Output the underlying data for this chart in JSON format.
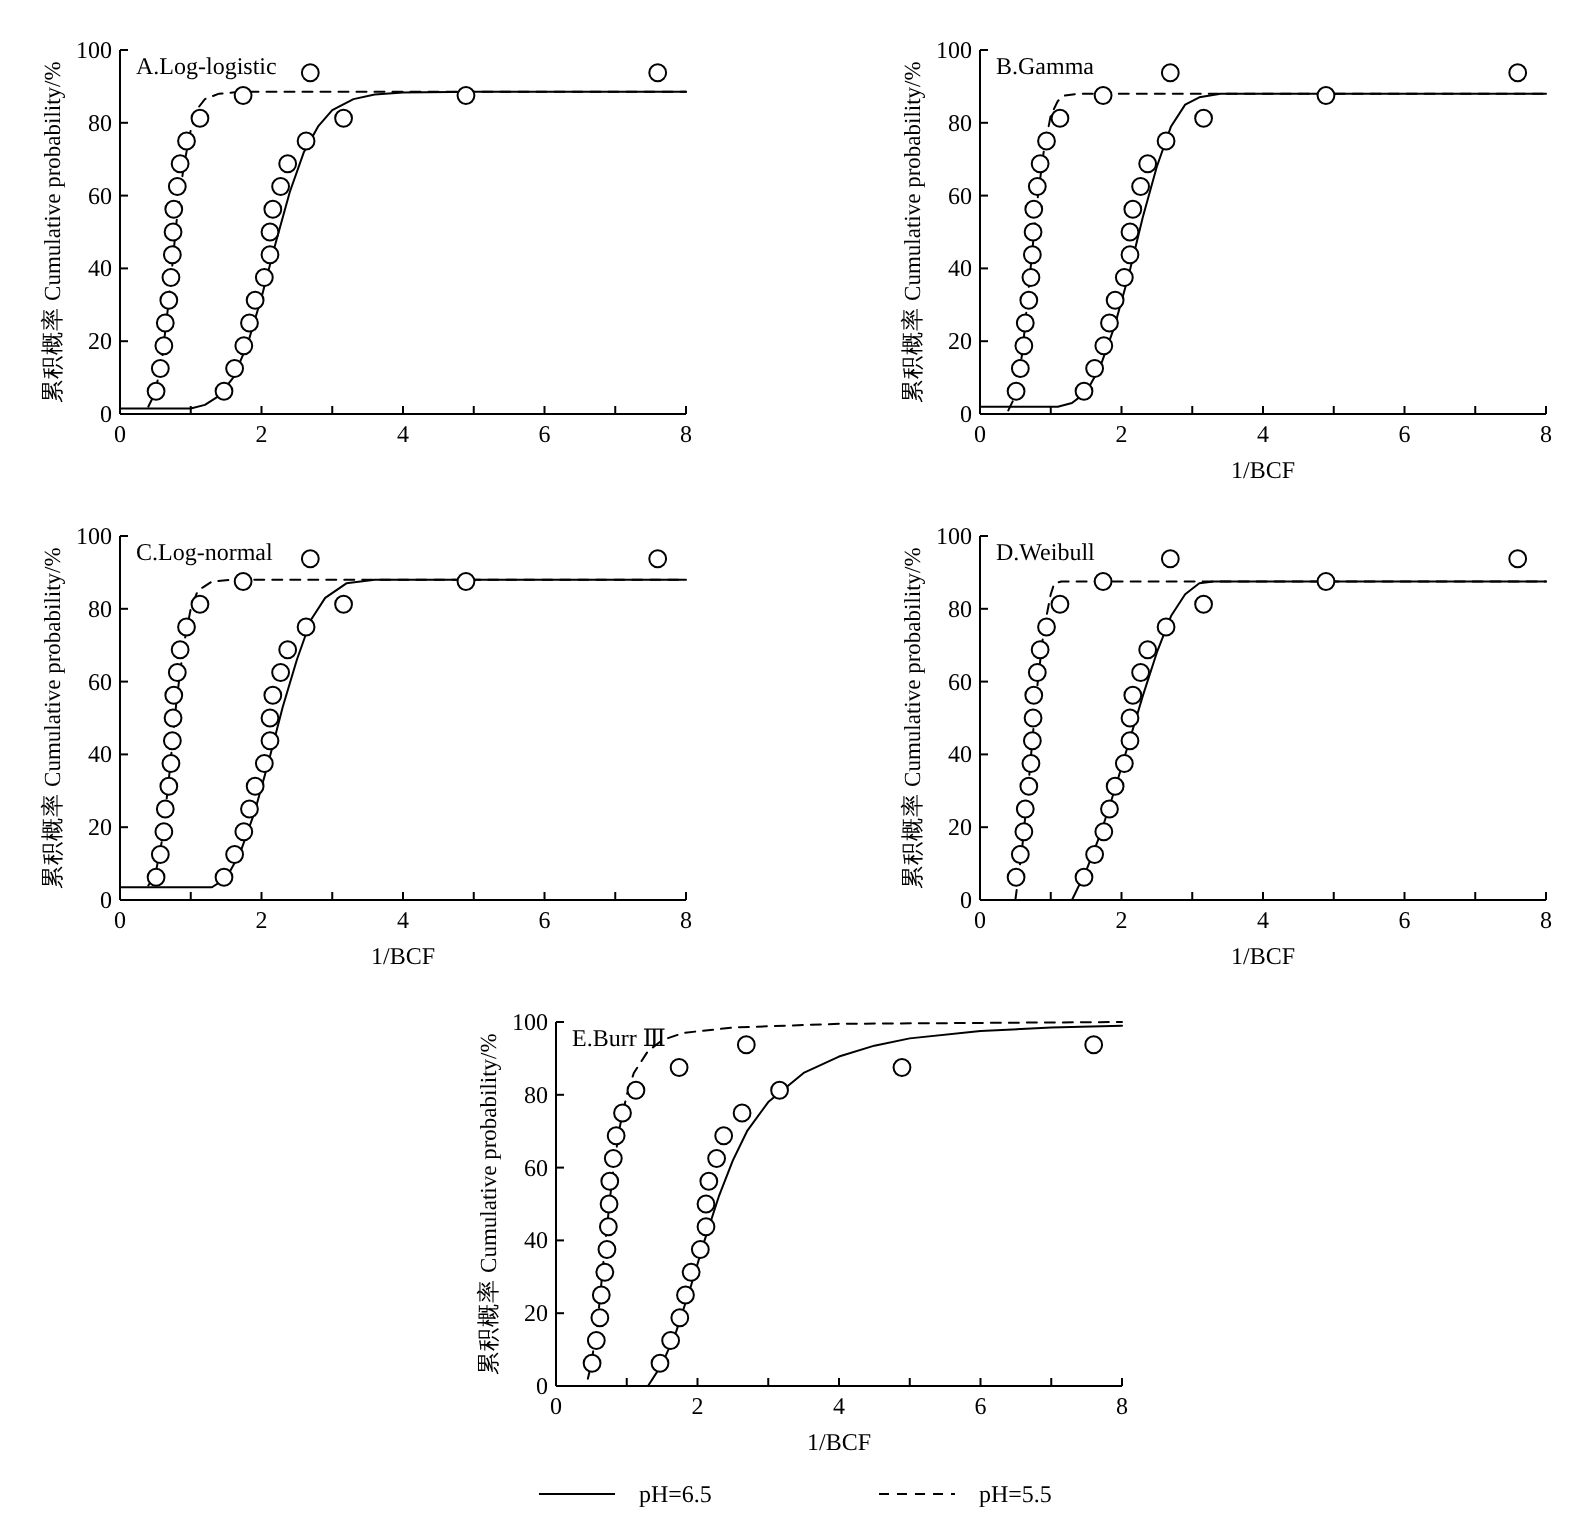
{
  "chart_data": [
    {
      "type": "line",
      "title": "A.Log-logistic",
      "ylabel": "累积概率 Cumulative probability/%",
      "xlim": [
        0,
        8
      ],
      "ylim": [
        0,
        100
      ],
      "xticks": [
        0,
        {
          "value": 1,
          "label": null
        },
        2,
        {
          "value": 3,
          "label": null
        },
        4,
        {
          "value": 5,
          "label": null
        },
        6,
        {
          "value": 7,
          "label": null
        },
        8
      ],
      "yticks": [
        0,
        20,
        40,
        60,
        80,
        100
      ],
      "legend": false,
      "series": [
        {
          "type": "line",
          "color": "#000000",
          "line_style": "solid",
          "marker": "none",
          "x": [
            0,
            1,
            1.2,
            1.4,
            1.6,
            1.8,
            2,
            2.2,
            2.4,
            2.6,
            2.8,
            3,
            3.3,
            3.6,
            4,
            5,
            8
          ],
          "values": [
            1.5,
            1.5,
            2.5,
            5,
            10,
            19,
            32,
            47,
            61,
            72,
            79,
            83.5,
            86.5,
            87.8,
            88.3,
            88.5,
            88.5
          ]
        },
        {
          "type": "line",
          "color": "#000000",
          "line_style": "dashed",
          "marker": "none",
          "x": [
            0.4,
            0.5,
            0.6,
            0.7,
            0.8,
            0.9,
            1,
            1.1,
            1.2,
            1.4,
            1.7,
            8
          ],
          "values": [
            2,
            6,
            16,
            33,
            53,
            68,
            78,
            84,
            86.5,
            88,
            88.5,
            88.5
          ]
        },
        {
          "type": "scatter",
          "color": "#000000",
          "marker": "circle",
          "x": [
            1.47,
            1.62,
            1.75,
            1.83,
            1.91,
            2.04,
            2.12,
            2.12,
            2.16,
            2.27,
            2.37,
            2.63,
            3.16,
            4.89,
            7.6
          ],
          "values": [
            6.25,
            12.5,
            18.75,
            25,
            31.25,
            37.5,
            43.75,
            50,
            56.25,
            62.5,
            68.75,
            75,
            81.25,
            87.5,
            93.75
          ]
        },
        {
          "type": "scatter",
          "color": "#000000",
          "marker": "circle",
          "x": [
            0.51,
            0.57,
            0.62,
            0.64,
            0.69,
            0.72,
            0.74,
            0.75,
            0.76,
            0.81,
            0.85,
            0.94,
            1.13,
            1.74,
            2.69
          ],
          "values": [
            6.25,
            12.5,
            18.75,
            25,
            31.25,
            37.5,
            43.75,
            50,
            56.25,
            62.5,
            68.75,
            75,
            81.25,
            87.5,
            93.75
          ]
        }
      ]
    },
    {
      "type": "line",
      "title": "B.Gamma",
      "xlabel": "1/BCF",
      "ylabel": "累积概率 Cumulative probability/%",
      "xlim": [
        0,
        8
      ],
      "ylim": [
        0,
        100
      ],
      "xticks": [
        0,
        {
          "value": 1,
          "label": null
        },
        2,
        {
          "value": 3,
          "label": null
        },
        4,
        {
          "value": 5,
          "label": null
        },
        6,
        {
          "value": 7,
          "label": null
        },
        8
      ],
      "yticks": [
        0,
        20,
        40,
        60,
        80,
        100
      ],
      "legend": false,
      "series": [
        {
          "type": "line",
          "color": "#000000",
          "line_style": "solid",
          "marker": "none",
          "x": [
            0,
            1.1,
            1.3,
            1.5,
            1.7,
            1.9,
            2.1,
            2.3,
            2.5,
            2.7,
            2.9,
            3.1,
            3.4,
            4,
            8
          ],
          "values": [
            2,
            2,
            3,
            6,
            13,
            24,
            38,
            54,
            68,
            79,
            85,
            87,
            88,
            88,
            88
          ]
        },
        {
          "type": "line",
          "color": "#000000",
          "line_style": "dashed",
          "marker": "none",
          "x": [
            0.4,
            0.5,
            0.6,
            0.7,
            0.8,
            0.9,
            1,
            1.1,
            1.2,
            1.4,
            8
          ],
          "values": [
            1,
            5,
            17,
            37,
            57,
            72,
            82,
            86,
            87.5,
            88,
            88
          ]
        },
        {
          "type": "scatter",
          "color": "#000000",
          "marker": "circle",
          "x": [
            1.47,
            1.62,
            1.75,
            1.83,
            1.91,
            2.04,
            2.12,
            2.12,
            2.16,
            2.27,
            2.37,
            2.63,
            3.16,
            4.89,
            7.6
          ],
          "values": [
            6.25,
            12.5,
            18.75,
            25,
            31.25,
            37.5,
            43.75,
            50,
            56.25,
            62.5,
            68.75,
            75,
            81.25,
            87.5,
            93.75
          ]
        },
        {
          "type": "scatter",
          "color": "#000000",
          "marker": "circle",
          "x": [
            0.51,
            0.57,
            0.62,
            0.64,
            0.69,
            0.72,
            0.74,
            0.75,
            0.76,
            0.81,
            0.85,
            0.94,
            1.13,
            1.74,
            2.69
          ],
          "values": [
            6.25,
            12.5,
            18.75,
            25,
            31.25,
            37.5,
            43.75,
            50,
            56.25,
            62.5,
            68.75,
            75,
            81.25,
            87.5,
            93.75
          ]
        }
      ]
    },
    {
      "type": "line",
      "title": "C.Log-normal",
      "xlabel": "1/BCF",
      "ylabel": "累积概率 Cumulative probability/%",
      "xlim": [
        0,
        8
      ],
      "ylim": [
        0,
        100
      ],
      "xticks": [
        0,
        {
          "value": 1,
          "label": null
        },
        2,
        {
          "value": 3,
          "label": null
        },
        4,
        {
          "value": 5,
          "label": null
        },
        6,
        {
          "value": 7,
          "label": null
        },
        8
      ],
      "yticks": [
        0,
        20,
        40,
        60,
        80,
        100
      ],
      "legend": false,
      "series": [
        {
          "type": "line",
          "color": "#000000",
          "line_style": "solid",
          "marker": "none",
          "x": [
            0,
            1.3,
            1.5,
            1.7,
            1.9,
            2.1,
            2.3,
            2.5,
            2.7,
            2.9,
            3.2,
            3.6,
            8
          ],
          "values": [
            3.5,
            3.5,
            6,
            13,
            24,
            38,
            53,
            66,
            77,
            83,
            87,
            88,
            88
          ]
        },
        {
          "type": "line",
          "color": "#000000",
          "line_style": "dashed",
          "marker": "none",
          "x": [
            0.4,
            0.5,
            0.6,
            0.7,
            0.8,
            0.9,
            1,
            1.1,
            1.3,
            1.6,
            8
          ],
          "values": [
            4,
            7,
            17,
            35,
            55,
            70,
            80,
            85,
            87.5,
            88,
            88
          ]
        },
        {
          "type": "scatter",
          "color": "#000000",
          "marker": "circle",
          "x": [
            1.47,
            1.62,
            1.75,
            1.83,
            1.91,
            2.04,
            2.12,
            2.12,
            2.16,
            2.27,
            2.37,
            2.63,
            3.16,
            4.89,
            7.6
          ],
          "values": [
            6.25,
            12.5,
            18.75,
            25,
            31.25,
            37.5,
            43.75,
            50,
            56.25,
            62.5,
            68.75,
            75,
            81.25,
            87.5,
            93.75
          ]
        },
        {
          "type": "scatter",
          "color": "#000000",
          "marker": "circle",
          "x": [
            0.51,
            0.57,
            0.62,
            0.64,
            0.69,
            0.72,
            0.74,
            0.75,
            0.76,
            0.81,
            0.85,
            0.94,
            1.13,
            1.74,
            2.69
          ],
          "values": [
            6.25,
            12.5,
            18.75,
            25,
            31.25,
            37.5,
            43.75,
            50,
            56.25,
            62.5,
            68.75,
            75,
            81.25,
            87.5,
            93.75
          ]
        }
      ]
    },
    {
      "type": "line",
      "title": "D.Weibull",
      "xlabel": "1/BCF",
      "ylabel": "累积概率 Cumulative probability/%",
      "xlim": [
        0,
        8
      ],
      "ylim": [
        0,
        100
      ],
      "xticks": [
        0,
        {
          "value": 1,
          "label": null
        },
        2,
        {
          "value": 3,
          "label": null
        },
        4,
        {
          "value": 5,
          "label": null
        },
        6,
        {
          "value": 7,
          "label": null
        },
        8
      ],
      "yticks": [
        0,
        20,
        40,
        60,
        80,
        100
      ],
      "legend": false,
      "series": [
        {
          "type": "line",
          "color": "#000000",
          "line_style": "solid",
          "marker": "none",
          "x": [
            1.3,
            1.5,
            1.7,
            1.9,
            2.1,
            2.3,
            2.5,
            2.7,
            2.9,
            3.1,
            3.3,
            8
          ],
          "values": [
            0,
            8,
            18,
            30,
            43,
            56,
            68,
            78,
            84,
            87,
            87.5,
            87.5
          ]
        },
        {
          "type": "line",
          "color": "#000000",
          "line_style": "dashed",
          "marker": "none",
          "x": [
            0.5,
            0.6,
            0.7,
            0.8,
            0.9,
            1,
            1.05,
            1.15,
            8
          ],
          "values": [
            0,
            15,
            35,
            57,
            74,
            84,
            87,
            87.5,
            87.5
          ]
        },
        {
          "type": "scatter",
          "color": "#000000",
          "marker": "circle",
          "x": [
            1.47,
            1.62,
            1.75,
            1.83,
            1.91,
            2.04,
            2.12,
            2.12,
            2.16,
            2.27,
            2.37,
            2.63,
            3.16,
            4.89,
            7.6
          ],
          "values": [
            6.25,
            12.5,
            18.75,
            25,
            31.25,
            37.5,
            43.75,
            50,
            56.25,
            62.5,
            68.75,
            75,
            81.25,
            87.5,
            93.75
          ]
        },
        {
          "type": "scatter",
          "color": "#000000",
          "marker": "circle",
          "x": [
            0.51,
            0.57,
            0.62,
            0.64,
            0.69,
            0.72,
            0.74,
            0.75,
            0.76,
            0.81,
            0.85,
            0.94,
            1.13,
            1.74,
            2.69
          ],
          "values": [
            6.25,
            12.5,
            18.75,
            25,
            31.25,
            37.5,
            43.75,
            50,
            56.25,
            62.5,
            68.75,
            75,
            81.25,
            87.5,
            93.75
          ]
        }
      ]
    },
    {
      "type": "line",
      "title": "E.Burr Ⅲ",
      "xlabel": "1/BCF",
      "ylabel": "累积概率 Cumulative probability/%",
      "xlim": [
        0,
        8
      ],
      "ylim": [
        0,
        100
      ],
      "xticks": [
        0,
        {
          "value": 1,
          "label": null
        },
        2,
        {
          "value": 3,
          "label": null
        },
        4,
        {
          "value": 5,
          "label": null
        },
        6,
        {
          "value": 7,
          "label": null
        },
        8
      ],
      "yticks": [
        0,
        20,
        40,
        60,
        80,
        100
      ],
      "legend": "bottom",
      "series": [
        {
          "name": "pH=6.5",
          "type": "line",
          "color": "#000000",
          "line_style": "solid",
          "marker": "none",
          "x": [
            1.3,
            1.5,
            1.7,
            1.9,
            2.1,
            2.3,
            2.5,
            2.7,
            3,
            3.5,
            4,
            4.5,
            5,
            6,
            7,
            8
          ],
          "values": [
            0,
            6,
            15,
            27,
            40,
            52,
            62,
            70,
            78,
            86,
            90.5,
            93.5,
            95.5,
            97.5,
            98.5,
            99
          ]
        },
        {
          "name": "pH=5.5",
          "type": "line",
          "color": "#000000",
          "line_style": "dashed",
          "marker": "none",
          "x": [
            0.45,
            0.5,
            0.6,
            0.7,
            0.8,
            0.9,
            1,
            1.1,
            1.3,
            1.5,
            1.8,
            2.5,
            4,
            8
          ],
          "values": [
            2,
            6,
            20,
            40,
            58,
            71,
            80,
            86,
            92,
            95,
            97,
            98.5,
            99.5,
            100
          ]
        },
        {
          "type": "scatter",
          "color": "#000000",
          "marker": "circle",
          "x": [
            1.47,
            1.62,
            1.75,
            1.83,
            1.91,
            2.04,
            2.12,
            2.12,
            2.16,
            2.27,
            2.37,
            2.63,
            3.16,
            4.89,
            7.6
          ],
          "values": [
            6.25,
            12.5,
            18.75,
            25,
            31.25,
            37.5,
            43.75,
            50,
            56.25,
            62.5,
            68.75,
            75,
            81.25,
            87.5,
            93.75
          ]
        },
        {
          "type": "scatter",
          "color": "#000000",
          "marker": "circle",
          "x": [
            0.51,
            0.57,
            0.62,
            0.64,
            0.69,
            0.72,
            0.74,
            0.75,
            0.76,
            0.81,
            0.85,
            0.94,
            1.13,
            1.74,
            2.69
          ],
          "values": [
            6.25,
            12.5,
            18.75,
            25,
            31.25,
            37.5,
            43.75,
            50,
            56.25,
            62.5,
            68.75,
            75,
            81.25,
            87.5,
            93.75
          ]
        }
      ]
    }
  ]
}
